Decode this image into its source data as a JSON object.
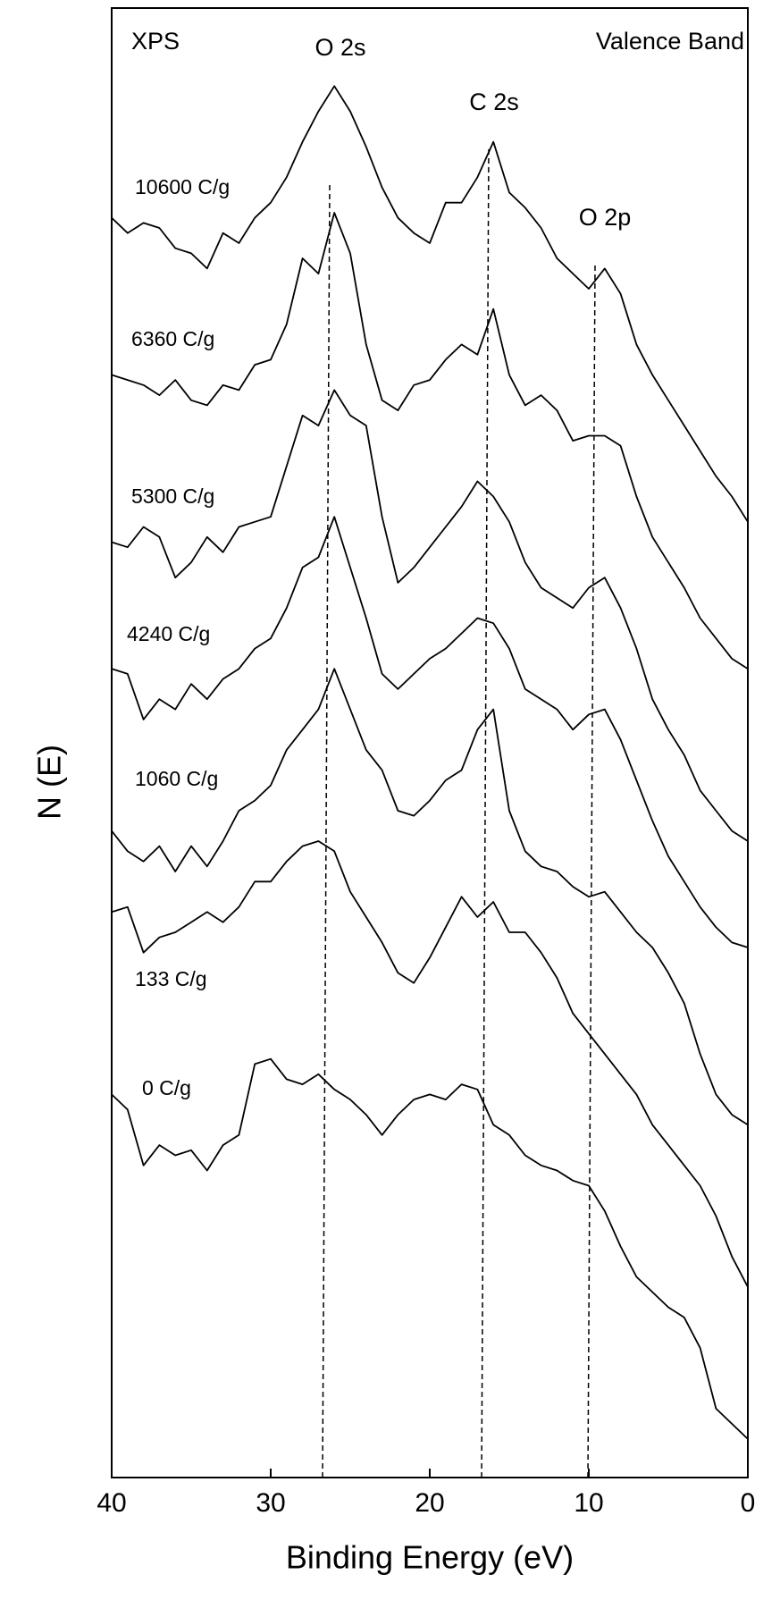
{
  "chart_data": {
    "type": "line",
    "annotations": {
      "left": "XPS",
      "right": "Valence Band",
      "o2s": "O 2s",
      "c2s": "C 2s",
      "o2p": "O 2p"
    },
    "x_label": "Binding Energy (eV)",
    "y_label": "N (E)",
    "x": [
      40,
      39,
      38,
      37,
      36,
      35,
      34,
      33,
      32,
      31,
      30,
      29,
      28,
      27,
      26,
      25,
      24,
      23,
      22,
      21,
      20,
      19,
      18,
      17,
      16,
      15,
      14,
      13,
      12,
      11,
      10,
      9,
      8,
      7,
      6,
      5,
      4,
      3,
      2,
      1,
      0
    ],
    "xlim": [
      40,
      0
    ],
    "xticks": [
      40,
      30,
      20,
      10,
      0
    ],
    "ylim": [
      0,
      1450
    ],
    "grid": false,
    "series": [
      {
        "name": "10600 C/g",
        "color": "#000000",
        "values": [
          1243,
          1228,
          1238,
          1233,
          1213,
          1208,
          1193,
          1228,
          1218,
          1243,
          1258,
          1283,
          1318,
          1348,
          1373,
          1348,
          1313,
          1273,
          1243,
          1228,
          1218,
          1258,
          1258,
          1283,
          1318,
          1268,
          1253,
          1233,
          1203,
          1188,
          1173,
          1193,
          1168,
          1118,
          1088,
          1063,
          1038,
          1013,
          988,
          968,
          943
        ]
      },
      {
        "name": "6360 C/g",
        "color": "#000000",
        "values": [
          1088,
          1083,
          1078,
          1068,
          1083,
          1063,
          1058,
          1078,
          1073,
          1098,
          1103,
          1138,
          1203,
          1188,
          1248,
          1208,
          1118,
          1063,
          1053,
          1078,
          1083,
          1103,
          1118,
          1108,
          1153,
          1088,
          1058,
          1068,
          1053,
          1023,
          1028,
          1028,
          1018,
          968,
          928,
          903,
          878,
          848,
          828,
          808,
          798
        ]
      },
      {
        "name": "5300 C/g",
        "color": "#000000",
        "values": [
          923,
          918,
          938,
          928,
          888,
          903,
          928,
          913,
          938,
          943,
          948,
          998,
          1048,
          1038,
          1073,
          1048,
          1038,
          948,
          883,
          898,
          918,
          938,
          958,
          983,
          968,
          943,
          903,
          878,
          868,
          858,
          878,
          888,
          858,
          818,
          768,
          738,
          713,
          678,
          658,
          638,
          628
        ]
      },
      {
        "name": "4240 C/g",
        "color": "#000000",
        "values": [
          798,
          793,
          748,
          768,
          758,
          783,
          768,
          788,
          798,
          818,
          828,
          858,
          898,
          908,
          948,
          898,
          848,
          793,
          778,
          793,
          808,
          818,
          833,
          848,
          843,
          818,
          778,
          768,
          758,
          738,
          753,
          758,
          728,
          688,
          648,
          613,
          588,
          563,
          543,
          528,
          523
        ]
      },
      {
        "name": "1060 C/g",
        "color": "#000000",
        "values": [
          638,
          618,
          608,
          623,
          598,
          623,
          603,
          628,
          658,
          668,
          683,
          718,
          738,
          758,
          798,
          758,
          718,
          698,
          658,
          653,
          668,
          688,
          698,
          738,
          758,
          658,
          618,
          603,
          598,
          583,
          573,
          578,
          558,
          538,
          523,
          498,
          468,
          418,
          378,
          358,
          348
        ]
      },
      {
        "name": "133 C/g",
        "color": "#000000",
        "values": [
          558,
          563,
          518,
          533,
          538,
          548,
          558,
          548,
          563,
          588,
          588,
          608,
          623,
          628,
          618,
          578,
          553,
          528,
          498,
          488,
          513,
          543,
          573,
          553,
          568,
          538,
          538,
          518,
          493,
          458,
          438,
          418,
          398,
          378,
          348,
          328,
          308,
          288,
          258,
          218,
          188
        ]
      },
      {
        "name": "0 C/g",
        "color": "#000000",
        "values": [
          378,
          363,
          308,
          328,
          318,
          323,
          303,
          328,
          338,
          408,
          413,
          393,
          388,
          398,
          383,
          373,
          358,
          338,
          358,
          373,
          378,
          373,
          388,
          383,
          348,
          338,
          318,
          308,
          303,
          293,
          288,
          263,
          228,
          198,
          183,
          168,
          158,
          128,
          68,
          53,
          38
        ]
      }
    ]
  }
}
